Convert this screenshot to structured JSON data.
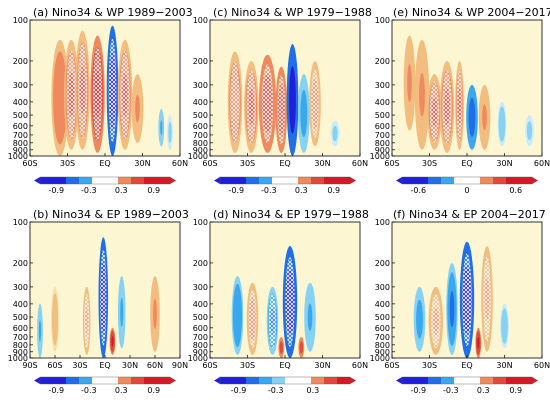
{
  "chart_data": [
    {
      "type": "heatmap",
      "title": "(a) Nino34 & WP 1989−2003",
      "xlabel": "",
      "ylabel": "",
      "x_ticks": [
        "60S",
        "30S",
        "EQ",
        "30N",
        "60N"
      ],
      "x_range": [
        -60,
        60
      ],
      "y_ticks": [
        100,
        200,
        300,
        400,
        500,
        600,
        700,
        800,
        900,
        1000
      ],
      "y_range": [
        100,
        1000
      ],
      "y_scale": "log",
      "y_inverted": true,
      "colorbar": {
        "ticks": [
          "-0.9",
          "-0.3",
          "0.3",
          "0.9"
        ],
        "tick_values": [
          -0.9,
          -0.3,
          0.3,
          0.9
        ],
        "range": [
          -1.2,
          1.2
        ]
      },
      "features": [
        {
          "lat": -36,
          "p_top": 140,
          "p_bot": 1000,
          "width": 6,
          "value": 0.45,
          "hatched": false
        },
        {
          "lat": -27,
          "p_top": 140,
          "p_bot": 900,
          "width": 5,
          "value": 0.55,
          "hatched": true
        },
        {
          "lat": -18,
          "p_top": 120,
          "p_bot": 900,
          "width": 5,
          "value": 0.55,
          "hatched": true
        },
        {
          "lat": -6,
          "p_top": 130,
          "p_bot": 950,
          "width": 5,
          "value": 0.75,
          "hatched": true
        },
        {
          "lat": 6,
          "p_top": 110,
          "p_bot": 1000,
          "width": 4,
          "value": -1.1,
          "hatched": true
        },
        {
          "lat": 16,
          "p_top": 140,
          "p_bot": 900,
          "width": 5,
          "value": 0.5,
          "hatched": true
        },
        {
          "lat": 26,
          "p_top": 250,
          "p_bot": 800,
          "width": 4,
          "value": 0.35,
          "hatched": false
        },
        {
          "lat": 45,
          "p_top": 450,
          "p_bot": 850,
          "width": 2,
          "value": -0.3,
          "hatched": false
        },
        {
          "lat": 52,
          "p_top": 500,
          "p_bot": 900,
          "width": 2,
          "value": -0.2,
          "hatched": false
        }
      ]
    },
    {
      "type": "heatmap",
      "title": "(c) Nino34 & WP 1979−1988",
      "xlabel": "",
      "ylabel": "",
      "x_ticks": [
        "60S",
        "30S",
        "EQ",
        "30N",
        "60N"
      ],
      "x_range": [
        -60,
        60
      ],
      "y_ticks": [
        100,
        200,
        300,
        400,
        500,
        600,
        700,
        800,
        900,
        1000
      ],
      "y_range": [
        100,
        1000
      ],
      "y_scale": "log",
      "y_inverted": true,
      "colorbar": {
        "ticks": [
          "-0.9",
          "-0.3",
          "0.3",
          "0.9"
        ],
        "tick_values": [
          -0.9,
          -0.3,
          0.3,
          0.9
        ],
        "range": [
          -1.2,
          1.2
        ]
      },
      "features": [
        {
          "lat": -40,
          "p_top": 170,
          "p_bot": 950,
          "width": 5,
          "value": 0.45,
          "hatched": true
        },
        {
          "lat": -27,
          "p_top": 200,
          "p_bot": 950,
          "width": 5,
          "value": 0.5,
          "hatched": true
        },
        {
          "lat": -14,
          "p_top": 180,
          "p_bot": 950,
          "width": 6,
          "value": 0.7,
          "hatched": true
        },
        {
          "lat": -3,
          "p_top": 220,
          "p_bot": 950,
          "width": 4,
          "value": 0.7,
          "hatched": true
        },
        {
          "lat": 6,
          "p_top": 150,
          "p_bot": 1000,
          "width": 4,
          "value": -1.0,
          "hatched": false
        },
        {
          "lat": 15,
          "p_top": 250,
          "p_bot": 950,
          "width": 4,
          "value": -0.4,
          "hatched": false
        },
        {
          "lat": 24,
          "p_top": 200,
          "p_bot": 850,
          "width": 4,
          "value": 0.4,
          "hatched": true
        },
        {
          "lat": 40,
          "p_top": 550,
          "p_bot": 850,
          "width": 3,
          "value": -0.2,
          "hatched": false
        }
      ]
    },
    {
      "type": "heatmap",
      "title": "(e) Nino34 & WP 2004−2017",
      "xlabel": "",
      "ylabel": "",
      "x_ticks": [
        "60S",
        "30S",
        "EQ",
        "30N",
        "60N"
      ],
      "x_range": [
        -60,
        60
      ],
      "y_ticks": [
        100,
        200,
        300,
        400,
        500,
        600,
        700,
        800,
        900,
        1000
      ],
      "y_range": [
        100,
        1000
      ],
      "y_scale": "log",
      "y_inverted": true,
      "colorbar": {
        "ticks": [
          "-0.6",
          "0",
          "0.6"
        ],
        "tick_values": [
          -0.6,
          0,
          0.6
        ],
        "range": [
          -0.8,
          0.8
        ]
      },
      "features": [
        {
          "lat": -46,
          "p_top": 130,
          "p_bot": 650,
          "width": 4,
          "value": 0.3,
          "hatched": false
        },
        {
          "lat": -36,
          "p_top": 140,
          "p_bot": 900,
          "width": 5,
          "value": 0.35,
          "hatched": false
        },
        {
          "lat": -26,
          "p_top": 250,
          "p_bot": 900,
          "width": 5,
          "value": 0.55,
          "hatched": true
        },
        {
          "lat": -16,
          "p_top": 200,
          "p_bot": 950,
          "width": 5,
          "value": 0.55,
          "hatched": true
        },
        {
          "lat": -6,
          "p_top": 200,
          "p_bot": 900,
          "width": 3,
          "value": 0.5,
          "hatched": true
        },
        {
          "lat": 4,
          "p_top": 300,
          "p_bot": 900,
          "width": 4,
          "value": -0.6,
          "hatched": false
        },
        {
          "lat": 14,
          "p_top": 300,
          "p_bot": 900,
          "width": 4,
          "value": 0.3,
          "hatched": false
        },
        {
          "lat": 28,
          "p_top": 400,
          "p_bot": 850,
          "width": 3,
          "value": -0.25,
          "hatched": false
        },
        {
          "lat": 50,
          "p_top": 500,
          "p_bot": 850,
          "width": 3,
          "value": -0.2,
          "hatched": false
        }
      ]
    },
    {
      "type": "heatmap",
      "title": "(b) Nino34 & EP 1989−2003",
      "xlabel": "",
      "ylabel": "",
      "x_ticks": [
        "90S",
        "60S",
        "30S",
        "EQ",
        "30N",
        "60N",
        "90N"
      ],
      "x_range": [
        -90,
        90
      ],
      "y_ticks": [
        100,
        200,
        300,
        400,
        500,
        600,
        700,
        800,
        900,
        1000
      ],
      "y_range": [
        100,
        1000
      ],
      "y_scale": "log",
      "y_inverted": true,
      "colorbar": {
        "ticks": [
          "-0.9",
          "-0.3",
          "0.3",
          "0.9"
        ],
        "tick_values": [
          -0.9,
          -0.3,
          0.3,
          0.9
        ],
        "range": [
          -1.2,
          1.2
        ]
      },
      "features": [
        {
          "lat": -78,
          "p_top": 400,
          "p_bot": 1000,
          "width": 3,
          "value": -0.35,
          "hatched": false
        },
        {
          "lat": -60,
          "p_top": 300,
          "p_bot": 900,
          "width": 4,
          "value": 0.25,
          "hatched": false
        },
        {
          "lat": -22,
          "p_top": 300,
          "p_bot": 950,
          "width": 4,
          "value": 0.35,
          "hatched": true
        },
        {
          "lat": -2,
          "p_top": 130,
          "p_bot": 1000,
          "width": 5,
          "value": -1.1,
          "hatched": true
        },
        {
          "lat": 9,
          "p_top": 600,
          "p_bot": 950,
          "width": 3,
          "value": 0.8,
          "hatched": false
        },
        {
          "lat": 20,
          "p_top": 250,
          "p_bot": 850,
          "width": 4,
          "value": -0.3,
          "hatched": false
        },
        {
          "lat": 60,
          "p_top": 250,
          "p_bot": 900,
          "width": 5,
          "value": 0.3,
          "hatched": false
        }
      ]
    },
    {
      "type": "heatmap",
      "title": "(d) Nino34 & EP 1979−1988",
      "xlabel": "",
      "ylabel": "",
      "x_ticks": [
        "60S",
        "30S",
        "EQ",
        "30N",
        "60N"
      ],
      "x_range": [
        -60,
        60
      ],
      "y_ticks": [
        100,
        200,
        300,
        400,
        500,
        600,
        700,
        800,
        900,
        1000
      ],
      "y_range": [
        100,
        1000
      ],
      "y_scale": "log",
      "y_inverted": true,
      "colorbar": {
        "ticks": [
          "-0.9",
          "-0.3",
          "0.3"
        ],
        "tick_values": [
          -0.9,
          -0.3,
          0.3
        ],
        "range": [
          -1.2,
          0.9
        ]
      },
      "features": [
        {
          "lat": -38,
          "p_top": 250,
          "p_bot": 950,
          "width": 4,
          "value": -0.45,
          "hatched": false
        },
        {
          "lat": -26,
          "p_top": 280,
          "p_bot": 950,
          "width": 4,
          "value": 0.4,
          "hatched": true
        },
        {
          "lat": -10,
          "p_top": 300,
          "p_bot": 950,
          "width": 4,
          "value": -0.5,
          "hatched": true
        },
        {
          "lat": -3,
          "p_top": 700,
          "p_bot": 1000,
          "width": 2,
          "value": 0.7,
          "hatched": false
        },
        {
          "lat": 4,
          "p_top": 150,
          "p_bot": 1000,
          "width": 5,
          "value": -1.1,
          "hatched": true
        },
        {
          "lat": 13,
          "p_top": 700,
          "p_bot": 1000,
          "width": 2,
          "value": 0.6,
          "hatched": false
        },
        {
          "lat": 20,
          "p_top": 280,
          "p_bot": 900,
          "width": 4,
          "value": -0.3,
          "hatched": false
        }
      ]
    },
    {
      "type": "heatmap",
      "title": "(f) Nino34 & EP 2004−2017",
      "xlabel": "",
      "ylabel": "",
      "x_ticks": [
        "60S",
        "30S",
        "EQ",
        "30N",
        "60N"
      ],
      "x_range": [
        -60,
        60
      ],
      "y_ticks": [
        100,
        200,
        300,
        400,
        500,
        600,
        700,
        800,
        900,
        1000
      ],
      "y_range": [
        100,
        1000
      ],
      "y_scale": "log",
      "y_inverted": true,
      "colorbar": {
        "ticks": [
          "-0.9",
          "-0.3",
          "0.3",
          "0.9"
        ],
        "tick_values": [
          -0.9,
          -0.3,
          0.3,
          0.9
        ],
        "range": [
          -1.2,
          1.2
        ]
      },
      "features": [
        {
          "lat": -38,
          "p_top": 300,
          "p_bot": 900,
          "width": 4,
          "value": -0.4,
          "hatched": false
        },
        {
          "lat": -25,
          "p_top": 300,
          "p_bot": 950,
          "width": 5,
          "value": 0.35,
          "hatched": true
        },
        {
          "lat": -12,
          "p_top": 200,
          "p_bot": 950,
          "width": 4,
          "value": -0.5,
          "hatched": false
        },
        {
          "lat": 0,
          "p_top": 140,
          "p_bot": 1000,
          "width": 5,
          "value": -1.1,
          "hatched": true
        },
        {
          "lat": 9,
          "p_top": 600,
          "p_bot": 1000,
          "width": 2,
          "value": 0.8,
          "hatched": false
        },
        {
          "lat": 16,
          "p_top": 150,
          "p_bot": 900,
          "width": 4,
          "value": 0.3,
          "hatched": true
        },
        {
          "lat": 30,
          "p_top": 400,
          "p_bot": 850,
          "width": 3,
          "value": -0.25,
          "hatched": false
        }
      ]
    }
  ],
  "colors": {
    "background_pos": "#fdf6d3",
    "background_neg": "#dff4fb",
    "neg_scale": [
      "#2020d8",
      "#1f6fe8",
      "#3aa8ee",
      "#86d2f2",
      "#c9ecf8"
    ],
    "pos_scale": [
      "#f6e0a8",
      "#f2bd7f",
      "#ee8a5e",
      "#e04a3b",
      "#d41a26"
    ],
    "hatch": "#ffffff",
    "axis": "#000000"
  }
}
